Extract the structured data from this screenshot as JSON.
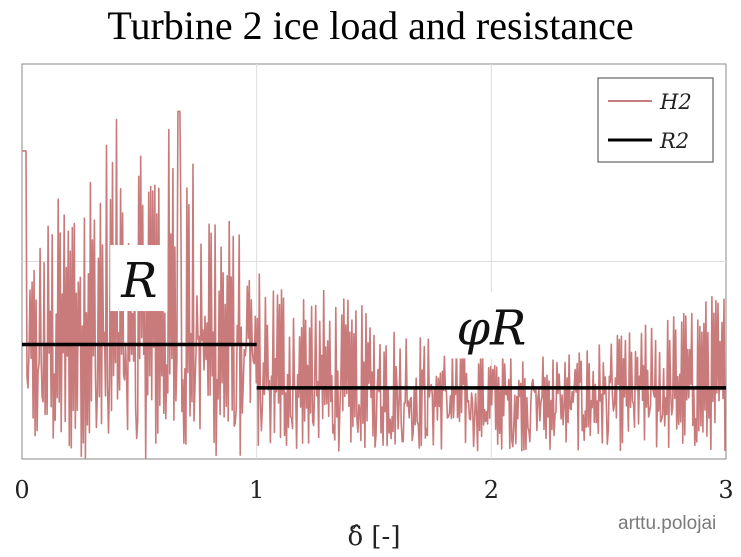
{
  "title": "Turbine 2 ice load and resistance",
  "watermark": "arttu.polojai",
  "chart_data": {
    "type": "line",
    "xlabel": "δ̂ [-]",
    "ylabel": "",
    "xlim": [
      0,
      3
    ],
    "ylim": [
      0,
      1
    ],
    "x_ticks": [
      "0",
      "1",
      "2",
      "3"
    ],
    "grid": true,
    "legend_position": "top-right",
    "series": [
      {
        "name": "H2",
        "color": "#c97a7a",
        "style": "thin oscillating signal",
        "y_range_segment_0_1": [
          0.0,
          0.88
        ],
        "y_range_segment_1_3": [
          0.02,
          0.52
        ]
      },
      {
        "name": "R2",
        "color": "#000000",
        "style": "step",
        "points": [
          [
            0,
            0.29
          ],
          [
            1,
            0.29
          ],
          [
            1,
            0.18
          ],
          [
            3,
            0.18
          ]
        ]
      }
    ],
    "annotations": [
      {
        "text": "R",
        "x": 0.5,
        "y": 0.41
      },
      {
        "text": "φR",
        "x": 2.0,
        "y": 0.29
      }
    ]
  }
}
